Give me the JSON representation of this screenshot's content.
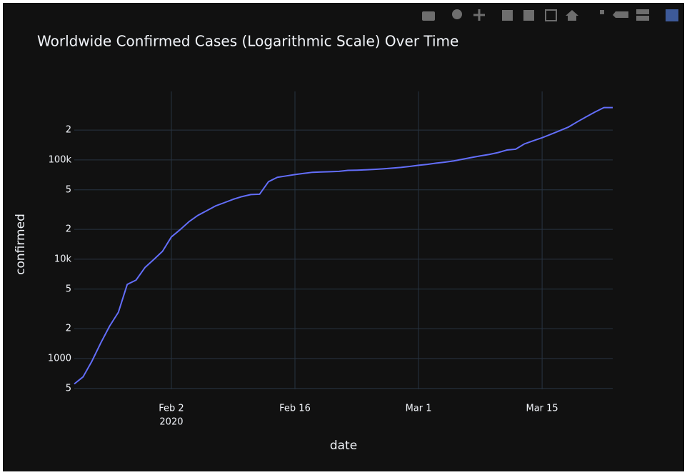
{
  "chart_data": {
    "type": "line",
    "title": "Worldwide Confirmed Cases (Logarithmic Scale) Over Time",
    "x_label": "date",
    "y_label": "confirmed",
    "log_y": true,
    "grid": true,
    "color": "#636efa",
    "x": [
      "2020-01-22",
      "2020-01-23",
      "2020-01-24",
      "2020-01-25",
      "2020-01-26",
      "2020-01-27",
      "2020-01-28",
      "2020-01-29",
      "2020-01-30",
      "2020-01-31",
      "2020-02-01",
      "2020-02-02",
      "2020-02-03",
      "2020-02-04",
      "2020-02-05",
      "2020-02-06",
      "2020-02-07",
      "2020-02-08",
      "2020-02-09",
      "2020-02-10",
      "2020-02-11",
      "2020-02-12",
      "2020-02-13",
      "2020-02-14",
      "2020-02-15",
      "2020-02-16",
      "2020-02-17",
      "2020-02-18",
      "2020-02-19",
      "2020-02-20",
      "2020-02-21",
      "2020-02-22",
      "2020-02-23",
      "2020-02-24",
      "2020-02-25",
      "2020-02-26",
      "2020-02-27",
      "2020-02-28",
      "2020-02-29",
      "2020-03-01",
      "2020-03-02",
      "2020-03-03",
      "2020-03-04",
      "2020-03-05",
      "2020-03-06",
      "2020-03-07",
      "2020-03-08",
      "2020-03-09",
      "2020-03-10",
      "2020-03-11",
      "2020-03-12",
      "2020-03-13",
      "2020-03-14",
      "2020-03-15",
      "2020-03-16",
      "2020-03-17",
      "2020-03-18",
      "2020-03-19",
      "2020-03-20",
      "2020-03-21",
      "2020-03-22",
      "2020-03-23"
    ],
    "values": [
      555,
      654,
      941,
      1434,
      2118,
      2927,
      5578,
      6166,
      8234,
      9927,
      12038,
      16787,
      19887,
      23898,
      27643,
      30802,
      34395,
      37129,
      40159,
      42762,
      44802,
      45221,
      60368,
      66885,
      69030,
      71224,
      73258,
      75136,
      75639,
      76197,
      76819,
      78572,
      78958,
      79561,
      80406,
      81388,
      82746,
      84112,
      86011,
      88369,
      90306,
      92840,
      95120,
      97886,
      101801,
      105847,
      109821,
      113590,
      118620,
      125875,
      128352,
      145205,
      156101,
      167454,
      181574,
      197102,
      214821,
      242570,
      272208,
      304507,
      336953,
      336953
    ],
    "xlim": [
      "2020-01-22",
      "2020-03-23"
    ],
    "xticks": [
      {
        "value": "2020-02-02",
        "label": "Feb 2",
        "sublabel": "2020"
      },
      {
        "value": "2020-02-16",
        "label": "Feb 16"
      },
      {
        "value": "2020-03-01",
        "label": "Mar 1"
      },
      {
        "value": "2020-03-15",
        "label": "Mar 15"
      }
    ],
    "ylim": [
      490,
      490000
    ],
    "yticks": [
      {
        "value": 500,
        "label": "5"
      },
      1000,
      {
        "value": 2000,
        "label": "2"
      },
      {
        "value": 5000,
        "label": "5"
      },
      {
        "value": 10000,
        "label": "10k"
      },
      {
        "value": 20000,
        "label": "2"
      },
      {
        "value": 50000,
        "label": "5"
      },
      {
        "value": 100000,
        "label": "100k"
      },
      {
        "value": 200000,
        "label": "2"
      }
    ]
  }
}
